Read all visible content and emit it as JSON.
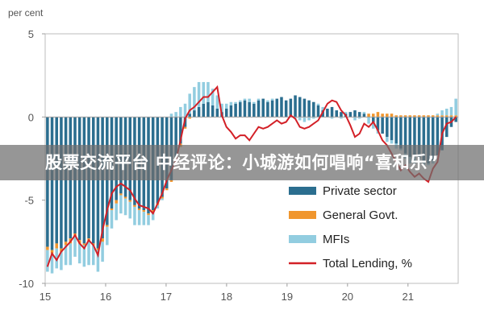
{
  "banner": {
    "text": "股票交流平台 中经评论：小城游如何唱响“喜和乐”"
  },
  "chart_data": {
    "type": "bar+line",
    "ylabel": "per cent",
    "ylim": [
      -10,
      5
    ],
    "yticks": [
      5,
      0,
      -5,
      -10
    ],
    "xticks": [
      "15",
      "16",
      "17",
      "18",
      "19",
      "20",
      "21"
    ],
    "x_start": 2015.0,
    "x_end": 2021.83,
    "legend_position": "bottom-right",
    "series": [
      {
        "name": "Private sector",
        "kind": "bar",
        "color": "#2b6e8f",
        "values": [
          -7.8,
          -8.0,
          -7.6,
          -7.9,
          -7.5,
          -7.3,
          -7.0,
          -7.4,
          -7.6,
          -7.3,
          -7.6,
          -7.9,
          -7.3,
          -6.5,
          -5.5,
          -5.0,
          -4.6,
          -4.8,
          -5.0,
          -5.3,
          -5.5,
          -5.6,
          -5.8,
          -5.6,
          -5.2,
          -4.8,
          -4.3,
          -3.8,
          -2.6,
          -1.6,
          -0.6,
          0.2,
          0.4,
          0.6,
          0.8,
          0.9,
          0.7,
          0.5,
          0.3,
          0.5,
          0.7,
          0.8,
          0.9,
          1.0,
          0.9,
          0.8,
          1.0,
          1.1,
          0.9,
          1.0,
          1.1,
          1.2,
          1.0,
          1.1,
          1.3,
          1.2,
          1.1,
          1.0,
          0.9,
          0.7,
          0.4,
          0.5,
          0.6,
          0.4,
          0.3,
          0.2,
          0.3,
          0.4,
          0.3,
          0.2,
          0.0,
          -0.4,
          -0.8,
          -1.0,
          -1.2,
          -1.4,
          -1.6,
          -1.9,
          -2.2,
          -2.4,
          -2.3,
          -2.5,
          -2.7,
          -2.8,
          -2.6,
          -2.3,
          -2.0,
          -1.2,
          -0.6,
          -0.3
        ]
      },
      {
        "name": "General Govt.",
        "kind": "bar",
        "color": "#f0962e",
        "values": [
          -0.2,
          -0.2,
          -0.3,
          -0.2,
          -0.2,
          -0.3,
          -0.2,
          -0.2,
          -0.1,
          -0.2,
          -0.1,
          -0.1,
          -0.2,
          -0.1,
          -0.1,
          -0.2,
          -0.1,
          -0.1,
          -0.1,
          -0.1,
          -0.1,
          -0.1,
          -0.1,
          -0.1,
          -0.1,
          -0.1,
          -0.1,
          -0.1,
          -0.1,
          -0.2,
          -0.1,
          -0.1,
          0.0,
          0.0,
          0.0,
          0.0,
          0.0,
          0.0,
          0.0,
          0.0,
          0.0,
          0.0,
          0.0,
          0.0,
          0.0,
          0.0,
          0.0,
          0.0,
          0.0,
          0.0,
          0.0,
          0.0,
          0.0,
          0.0,
          0.0,
          0.0,
          0.0,
          0.0,
          0.0,
          0.0,
          0.0,
          0.0,
          0.0,
          0.0,
          0.0,
          0.0,
          0.0,
          0.0,
          0.0,
          0.0,
          0.2,
          0.2,
          0.3,
          0.2,
          0.2,
          0.2,
          0.1,
          0.1,
          0.1,
          0.1,
          0.1,
          0.1,
          0.1,
          0.1,
          0.1,
          0.1,
          0.1,
          0.1,
          0.1,
          0.1
        ]
      },
      {
        "name": "MFIs",
        "kind": "bar",
        "color": "#92cde0",
        "values": [
          -1.3,
          -1.2,
          -1.2,
          -1.1,
          -1.2,
          -1.3,
          -1.2,
          -1.2,
          -1.3,
          -1.4,
          -1.2,
          -1.3,
          -1.2,
          -1.1,
          -1.1,
          -1.0,
          -1.1,
          -1.0,
          -1.0,
          -1.1,
          -0.9,
          -0.8,
          -0.6,
          -0.5,
          -0.2,
          -0.1,
          0.0,
          0.2,
          0.3,
          0.6,
          0.8,
          1.2,
          1.4,
          1.5,
          1.3,
          1.2,
          1.0,
          0.8,
          0.5,
          0.3,
          0.2,
          0.1,
          0.1,
          0.1,
          0.2,
          0.1,
          0.1,
          0.0,
          0.1,
          0.1,
          0.0,
          0.0,
          0.0,
          0.0,
          -0.1,
          -0.2,
          -0.3,
          -0.2,
          -0.1,
          0.1,
          0.2,
          0.0,
          -0.1,
          0.0,
          -0.1,
          0.1,
          0.0,
          -0.2,
          -0.1,
          0.1,
          -0.4,
          -0.3,
          -0.2,
          0.0,
          -0.3,
          -0.2,
          -0.3,
          -0.1,
          -0.3,
          -0.4,
          -0.5,
          -0.3,
          -0.2,
          -0.1,
          -0.2,
          0.1,
          0.3,
          0.4,
          0.5,
          1.0
        ]
      },
      {
        "name": "Total Lending, %",
        "kind": "line",
        "color": "#d32027",
        "values": [
          -9.0,
          -8.2,
          -8.6,
          -8.1,
          -7.8,
          -7.5,
          -7.1,
          -7.6,
          -7.9,
          -7.4,
          -7.7,
          -8.3,
          -6.8,
          -5.6,
          -4.6,
          -4.2,
          -4.0,
          -4.2,
          -4.4,
          -4.9,
          -5.3,
          -5.4,
          -5.5,
          -5.8,
          -5.2,
          -4.6,
          -3.8,
          -3.2,
          -2.6,
          -1.4,
          -0.1,
          0.4,
          0.6,
          0.9,
          1.2,
          1.2,
          1.5,
          1.8,
          0.1,
          -0.6,
          -0.9,
          -1.3,
          -1.1,
          -1.1,
          -1.4,
          -1.0,
          -0.6,
          -0.7,
          -0.6,
          -0.4,
          -0.2,
          -0.4,
          -0.3,
          0.1,
          -0.1,
          -0.6,
          -0.7,
          -0.6,
          -0.4,
          -0.2,
          0.3,
          0.8,
          1.0,
          0.9,
          0.4,
          0.1,
          -0.5,
          -1.2,
          -1.0,
          -0.4,
          -0.6,
          -0.3,
          -0.8,
          -1.4,
          -1.7,
          -2.2,
          -2.7,
          -3.2,
          -2.9,
          -3.3,
          -3.6,
          -3.4,
          -3.7,
          -3.9,
          -3.1,
          -2.7,
          -1.0,
          -0.4,
          -0.3,
          0.0
        ]
      }
    ]
  }
}
